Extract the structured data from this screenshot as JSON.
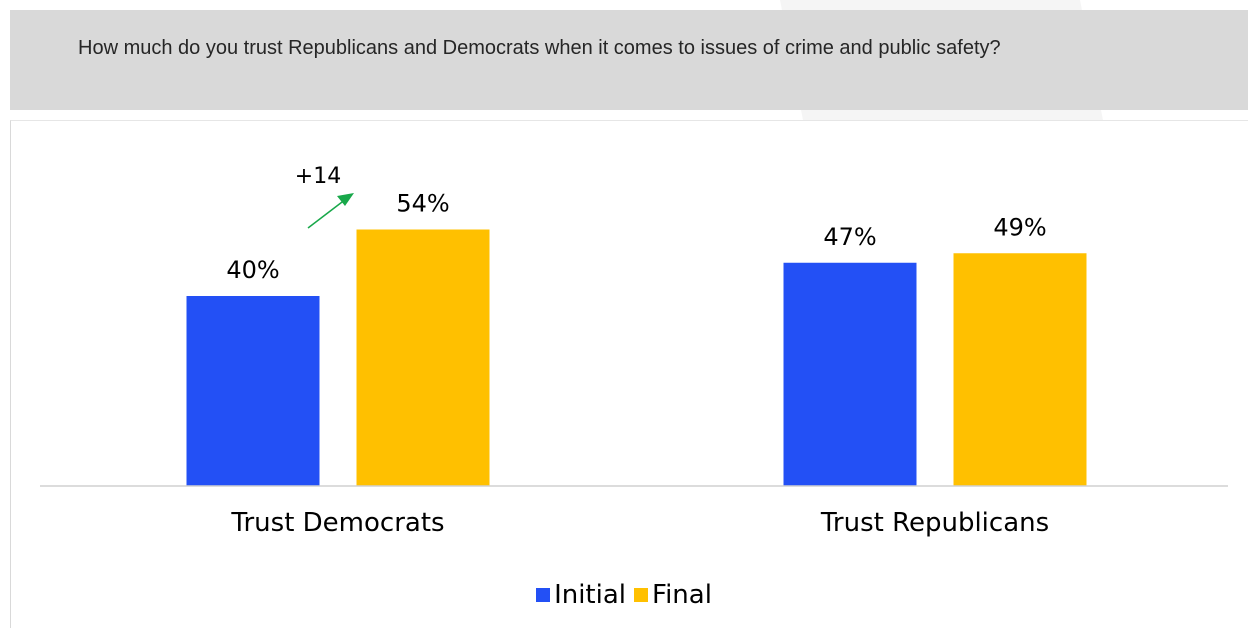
{
  "question": {
    "text": "How much do you trust Republicans and Democrats when it comes to issues of crime and public safety?"
  },
  "colors": {
    "initial": "#2350f5",
    "final": "#ffc000",
    "change_arrow": "#18a84a",
    "header_bg": "#d9d9d9"
  },
  "annotation": {
    "label": "+14"
  },
  "chart_data": {
    "type": "bar",
    "categories": [
      "Trust Democrats",
      "Trust Republicans"
    ],
    "series": [
      {
        "name": "Initial",
        "values": [
          40,
          47
        ],
        "labels": [
          "40%",
          "47%"
        ]
      },
      {
        "name": "Final",
        "values": [
          54,
          49
        ],
        "labels": [
          "54%",
          "49%"
        ]
      }
    ],
    "ylim": [
      0,
      60
    ],
    "grid": false,
    "legend_position": "bottom"
  }
}
